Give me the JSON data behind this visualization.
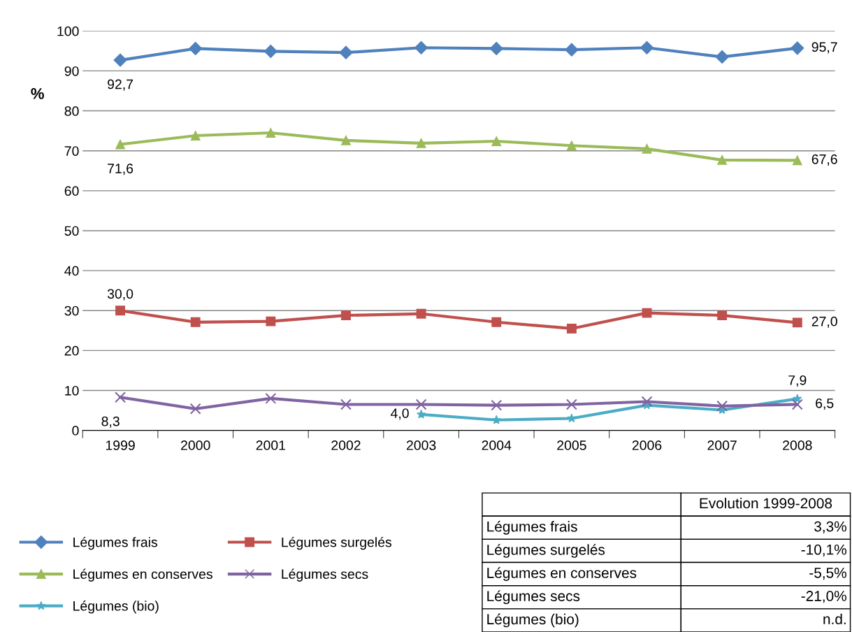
{
  "chart_data": {
    "type": "line",
    "ylabel": "%",
    "categories": [
      "1999",
      "2000",
      "2001",
      "2002",
      "2003",
      "2004",
      "2005",
      "2006",
      "2007",
      "2008"
    ],
    "ylim": [
      0,
      100
    ],
    "yticks": [
      0,
      10,
      20,
      30,
      40,
      50,
      60,
      70,
      80,
      90,
      100
    ],
    "grid": "y",
    "legend": "bottom left",
    "line_style": "solid",
    "series": [
      {
        "name": "Légumes frais",
        "color": "#4f81bd",
        "marker": "diamond",
        "values": [
          92.7,
          95.6,
          94.9,
          94.6,
          95.8,
          95.6,
          95.3,
          95.8,
          93.5,
          95.7
        ],
        "value_labels": [
          "92,7",
          null,
          null,
          null,
          null,
          null,
          null,
          null,
          null,
          "95,7"
        ]
      },
      {
        "name": "Légumes surgelés",
        "color": "#c0504d",
        "marker": "square",
        "values": [
          30.0,
          27.1,
          27.3,
          28.8,
          29.2,
          27.1,
          25.5,
          29.4,
          28.8,
          27.0
        ],
        "value_labels": [
          "30,0",
          null,
          null,
          null,
          null,
          null,
          null,
          null,
          null,
          "27,0"
        ]
      },
      {
        "name": "Légumes en conserves",
        "color": "#9bbb59",
        "marker": "triangle",
        "values": [
          71.6,
          73.8,
          74.5,
          72.6,
          71.9,
          72.4,
          71.3,
          70.5,
          67.7,
          67.6
        ],
        "value_labels": [
          "71,6",
          null,
          null,
          null,
          null,
          null,
          null,
          null,
          null,
          "67,6"
        ]
      },
      {
        "name": "Légumes secs",
        "color": "#8064a2",
        "marker": "cross",
        "values": [
          8.3,
          5.4,
          8.0,
          6.5,
          6.5,
          6.3,
          6.5,
          7.2,
          6.1,
          6.5
        ],
        "value_labels": [
          "8,3",
          null,
          null,
          null,
          null,
          null,
          null,
          null,
          null,
          "6,5"
        ]
      },
      {
        "name": "Légumes (bio)",
        "color": "#4bacc6",
        "marker": "star",
        "values": [
          null,
          null,
          null,
          null,
          4.0,
          2.6,
          3.0,
          6.3,
          5.1,
          7.9
        ],
        "value_labels": [
          null,
          null,
          null,
          null,
          "4,0",
          null,
          null,
          null,
          null,
          "7,9"
        ]
      }
    ],
    "annotations": [
      "Evolution 1999-2008",
      "Légumes frais",
      "3,3%",
      "Légumes surgelés",
      "-10,1%",
      "Légumes en conserves",
      "-5,5%",
      "Légumes secs",
      "-21,0%",
      "Légumes (bio)",
      "n.d."
    ]
  }
}
